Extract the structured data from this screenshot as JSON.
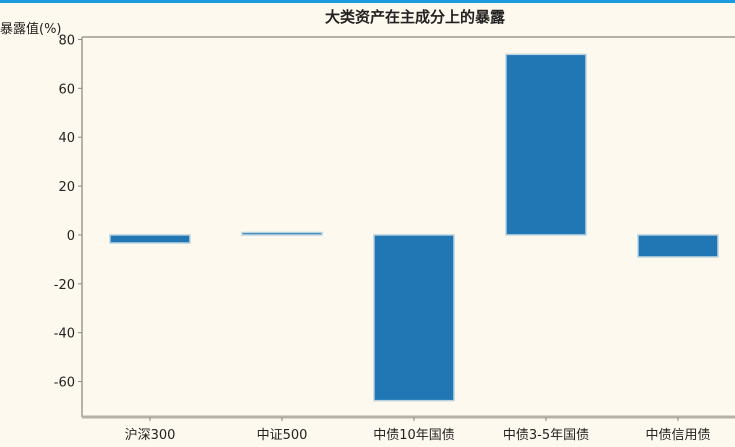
{
  "chart_data": {
    "type": "bar",
    "title": "大类资产在主成分上的暴露",
    "xlabel": "",
    "ylabel": "暴露值(%)",
    "categories": [
      "沪深300",
      "中证500",
      "中债10年国债",
      "中债3-5年国债",
      "中债信用债"
    ],
    "values": [
      -3.3,
      1.0,
      -67.8,
      73.9,
      -9.0
    ],
    "ylim": [
      -74.5,
      81
    ],
    "yticks": [
      -60,
      -40,
      -20,
      0,
      20,
      40,
      60,
      80
    ],
    "grid": false,
    "bar_color": "#2077b4"
  }
}
